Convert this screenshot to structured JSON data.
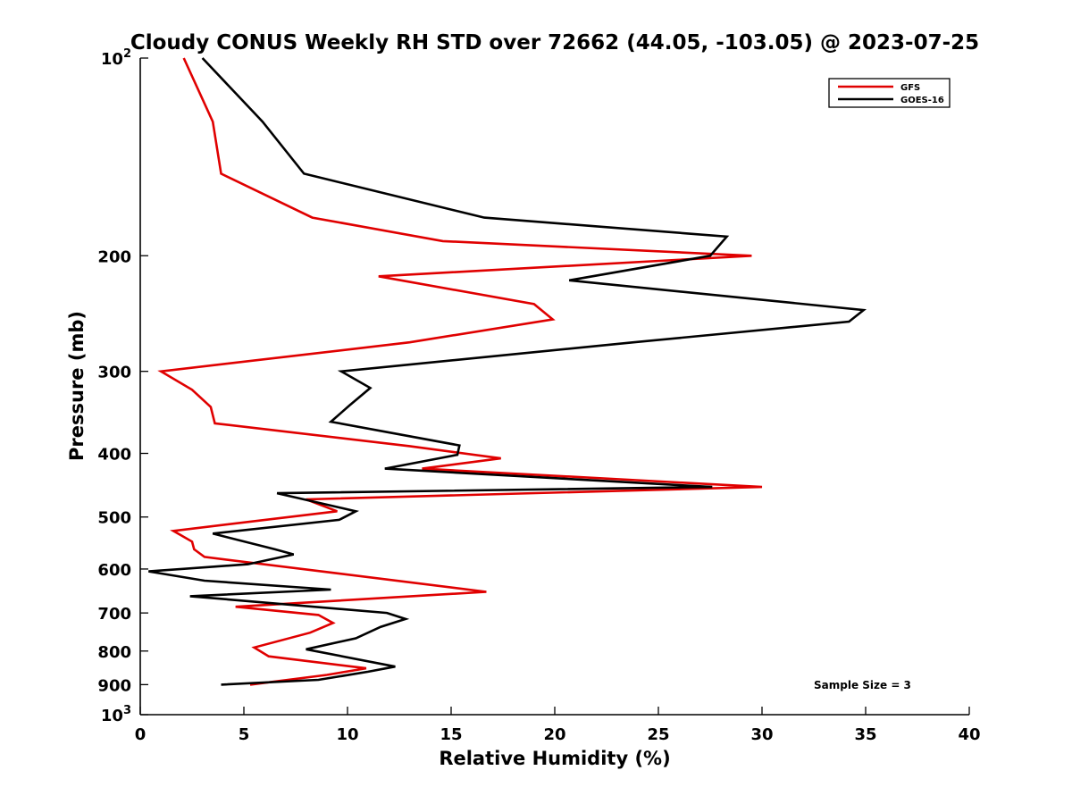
{
  "chart_data": {
    "type": "line",
    "title": "Cloudy CONUS Weekly RH STD over 72662 (44.05, -103.05) @ 2023-07-25",
    "xlabel": "Relative Humidity (%)",
    "ylabel": "Pressure (mb)",
    "xlim": [
      0,
      40
    ],
    "ylim": [
      100,
      1000
    ],
    "y_scale": "log",
    "y_inverted": true,
    "grid": false,
    "legend_position": "top-right",
    "x_ticks": [
      0,
      5,
      10,
      15,
      20,
      25,
      30,
      35,
      40
    ],
    "y_ticks": [
      {
        "value": 100,
        "label": "10",
        "sup": "2"
      },
      {
        "value": 200,
        "label": "200",
        "sup": ""
      },
      {
        "value": 300,
        "label": "300",
        "sup": ""
      },
      {
        "value": 400,
        "label": "400",
        "sup": ""
      },
      {
        "value": 500,
        "label": "500",
        "sup": ""
      },
      {
        "value": 600,
        "label": "600",
        "sup": ""
      },
      {
        "value": 700,
        "label": "700",
        "sup": ""
      },
      {
        "value": 800,
        "label": "800",
        "sup": ""
      },
      {
        "value": 900,
        "label": "900",
        "sup": ""
      },
      {
        "value": 1000,
        "label": "10",
        "sup": "3"
      }
    ],
    "annotation": "Sample Size = 3",
    "series": [
      {
        "name": "GFS",
        "color": "#e00000",
        "points": [
          [
            2.1,
            100
          ],
          [
            3.5,
            125
          ],
          [
            3.9,
            150
          ],
          [
            8.3,
            175
          ],
          [
            14.6,
            190
          ],
          [
            29.5,
            200
          ],
          [
            11.5,
            215
          ],
          [
            19.0,
            237
          ],
          [
            19.9,
            250
          ],
          [
            13.0,
            271
          ],
          [
            1.0,
            300
          ],
          [
            2.5,
            320
          ],
          [
            3.4,
            340
          ],
          [
            3.6,
            360
          ],
          [
            13.0,
            390
          ],
          [
            17.4,
            407
          ],
          [
            13.6,
            422
          ],
          [
            30.0,
            450
          ],
          [
            8.0,
            470
          ],
          [
            9.5,
            490
          ],
          [
            1.6,
            525
          ],
          [
            2.5,
            545
          ],
          [
            2.6,
            560
          ],
          [
            3.1,
            575
          ],
          [
            9.3,
            608
          ],
          [
            16.7,
            650
          ],
          [
            4.6,
            685
          ],
          [
            8.6,
            705
          ],
          [
            9.3,
            725
          ],
          [
            8.2,
            750
          ],
          [
            5.5,
            790
          ],
          [
            6.2,
            815
          ],
          [
            10.9,
            850
          ],
          [
            9.0,
            870
          ],
          [
            5.3,
            900
          ]
        ]
      },
      {
        "name": "GOES-16",
        "color": "#000000",
        "points": [
          [
            3.0,
            100
          ],
          [
            5.9,
            125
          ],
          [
            7.9,
            150
          ],
          [
            16.6,
            175
          ],
          [
            28.3,
            187
          ],
          [
            27.5,
            200
          ],
          [
            20.7,
            218
          ],
          [
            34.9,
            242
          ],
          [
            34.2,
            252
          ],
          [
            23.8,
            271
          ],
          [
            9.7,
            300
          ],
          [
            11.1,
            318
          ],
          [
            10.1,
            338
          ],
          [
            9.2,
            358
          ],
          [
            15.4,
            389
          ],
          [
            15.3,
            402
          ],
          [
            11.8,
            422
          ],
          [
            27.6,
            450
          ],
          [
            6.6,
            460
          ],
          [
            10.4,
            490
          ],
          [
            9.6,
            505
          ],
          [
            3.5,
            530
          ],
          [
            6.5,
            560
          ],
          [
            7.4,
            570
          ],
          [
            5.2,
            590
          ],
          [
            0.4,
            605
          ],
          [
            3.1,
            625
          ],
          [
            9.2,
            645
          ],
          [
            2.4,
            660
          ],
          [
            11.9,
            700
          ],
          [
            12.8,
            715
          ],
          [
            11.6,
            735
          ],
          [
            10.4,
            765
          ],
          [
            8.0,
            795
          ],
          [
            12.3,
            845
          ],
          [
            11.0,
            860
          ],
          [
            8.6,
            885
          ],
          [
            3.9,
            900
          ]
        ]
      }
    ]
  }
}
